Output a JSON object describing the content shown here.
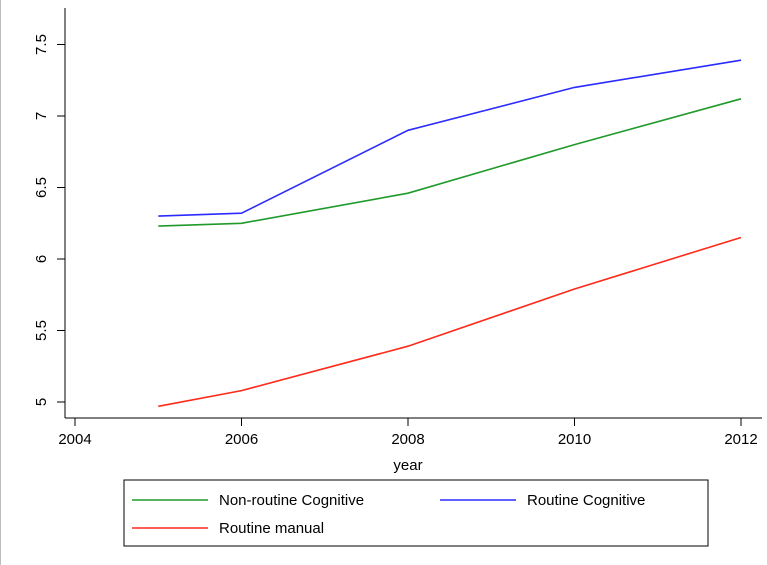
{
  "chart_data": {
    "type": "line",
    "title": "",
    "xlabel": "year",
    "ylabel": "",
    "xlim": [
      2004,
      2012
    ],
    "ylim": [
      4.92,
      7.6
    ],
    "x_ticks": [
      "2004",
      "2006",
      "2008",
      "2010",
      "2012"
    ],
    "y_ticks": [
      "5",
      "5.5",
      "6",
      "6.5",
      "7",
      "7.5"
    ],
    "grid": false,
    "legend_position": "bottom",
    "x": [
      2005,
      2006,
      2008,
      2010,
      2012
    ],
    "series": [
      {
        "name": "Non-routine Cognitive",
        "color": "#1f9a2a",
        "values": [
          6.23,
          6.25,
          6.46,
          6.8,
          7.12
        ]
      },
      {
        "name": "Routine Cognitive",
        "color": "#2b2bff",
        "values": [
          6.3,
          6.32,
          6.9,
          7.2,
          7.39
        ]
      },
      {
        "name": "Routine manual",
        "color": "#ff2a1a",
        "values": [
          4.97,
          5.08,
          5.39,
          5.79,
          6.15
        ]
      }
    ]
  }
}
